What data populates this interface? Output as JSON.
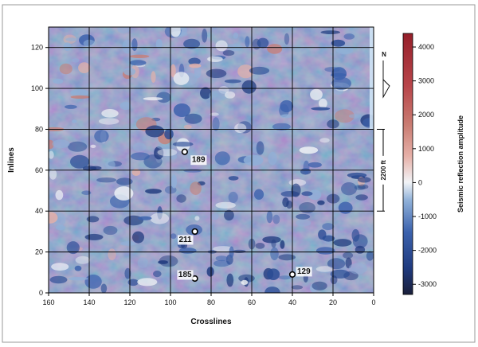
{
  "chart_data": {
    "type": "heatmap",
    "title": "",
    "xlabel": "Crosslines",
    "ylabel": "Inlines",
    "xlim": [
      160,
      0
    ],
    "ylim": [
      0,
      130
    ],
    "x_ticks": [
      160,
      140,
      120,
      100,
      80,
      60,
      40,
      20,
      0
    ],
    "y_ticks": [
      0,
      20,
      40,
      60,
      80,
      100,
      120
    ],
    "x_tick_labels": [
      "160",
      "140",
      "120",
      "100",
      "80",
      "60",
      "40",
      "20",
      "0"
    ],
    "y_tick_labels": [
      "0",
      "20",
      "40",
      "60",
      "80",
      "100",
      "120"
    ],
    "grid": true,
    "colorbar": {
      "label": "Seismic reflection amplitude",
      "range": [
        -3300,
        4400
      ],
      "ticks": [
        4000,
        3000,
        2000,
        1000,
        0,
        -1000,
        -2000,
        -3000
      ],
      "tick_labels": [
        "4000",
        "3000",
        "2000",
        "1000",
        "0",
        "-1000",
        "-2000",
        "-3000"
      ],
      "colors": [
        "#1a1f3a",
        "#1f3a7e",
        "#3c62ad",
        "#8fb0d8",
        "#f2f4f7",
        "#e6b0a8",
        "#c97c72",
        "#b8454a",
        "#951f2a"
      ]
    },
    "wells": [
      {
        "label": "189",
        "crossline": 93,
        "inline": 69
      },
      {
        "label": "211",
        "crossline": 88,
        "inline": 30
      },
      {
        "label": "185",
        "crossline": 88,
        "inline": 7
      },
      {
        "label": "129",
        "crossline": 40,
        "inline": 9
      }
    ],
    "scale_bar": {
      "label": "2200 ft",
      "inline_from": 40,
      "inline_to": 80
    },
    "north_arrow": {
      "label": "N"
    }
  }
}
